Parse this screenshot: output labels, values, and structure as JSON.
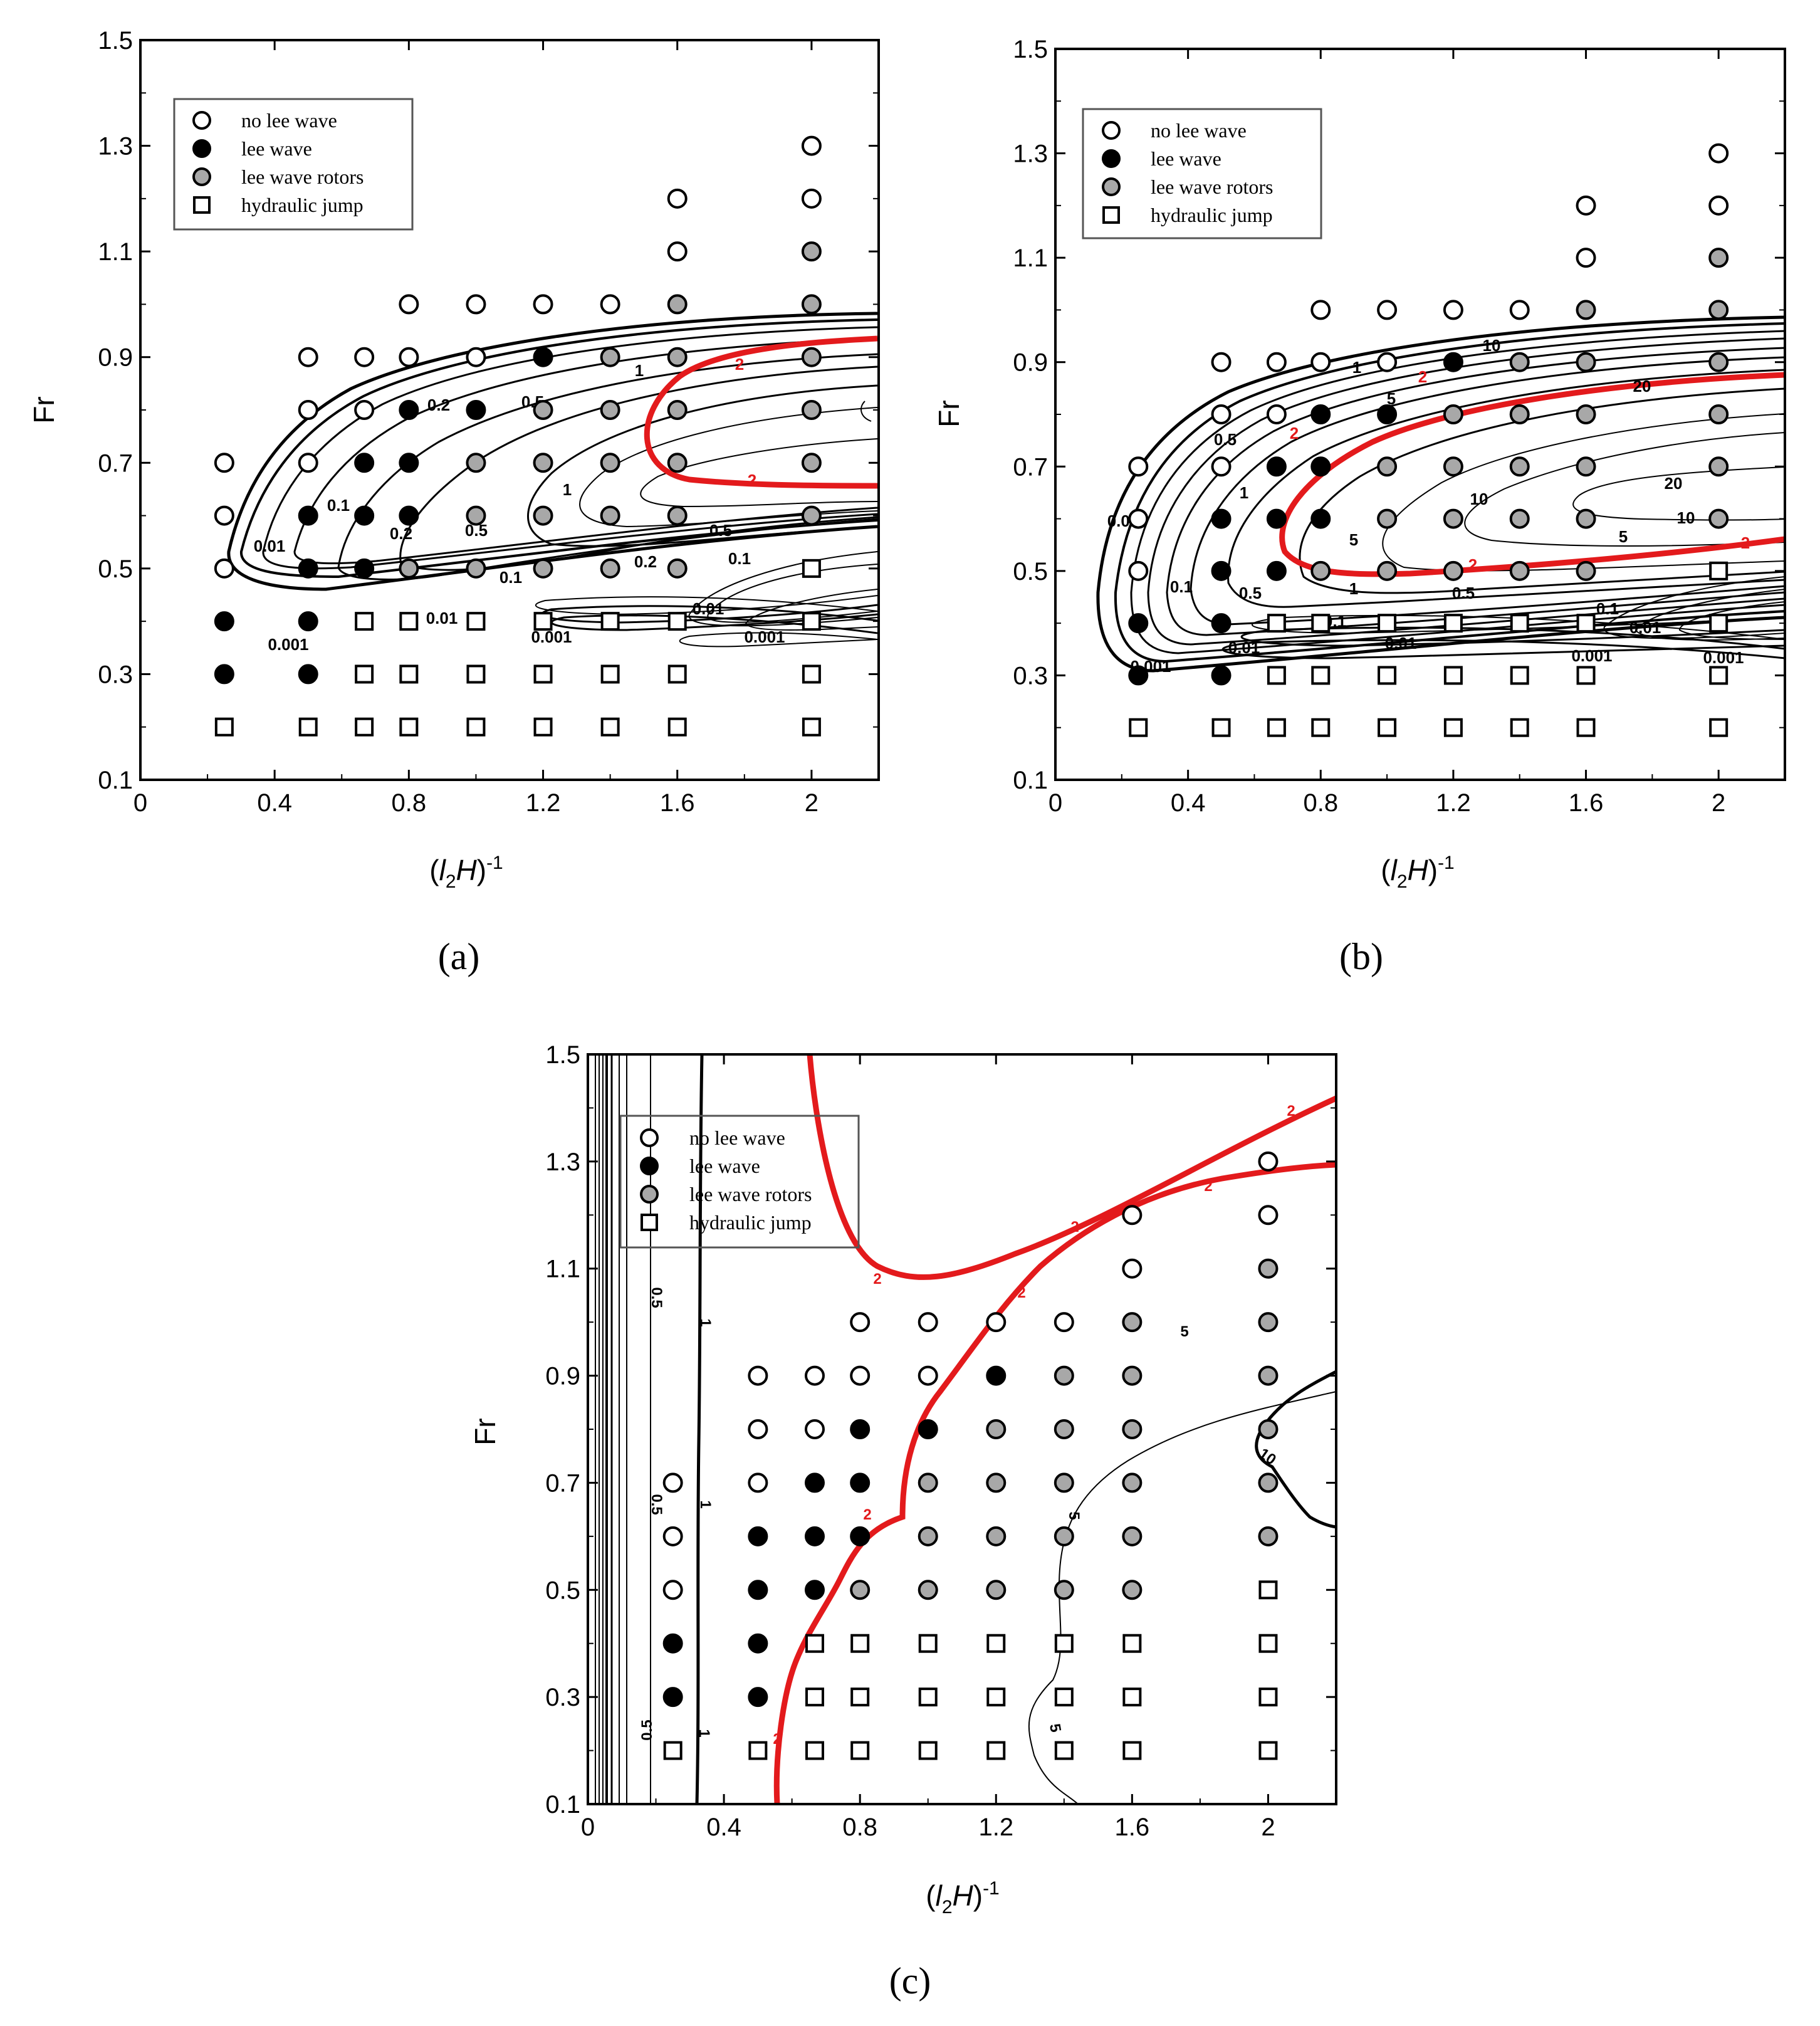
{
  "figure": {
    "panels": [
      "(a)",
      "(b)",
      "(c)"
    ]
  },
  "legend": {
    "no_lee_wave": "no lee wave",
    "lee_wave": "lee wave",
    "lee_wave_rotors": "lee wave rotors",
    "hydraulic_jump": "hydraulic jump"
  },
  "colors": {
    "highlight": "#e31a1c",
    "rotor_fill": "#a8a8a8",
    "ink": "#000000"
  },
  "chart_data": [
    {
      "panel": "(a)",
      "type": "scatter",
      "xlabel": "(l2H)-1",
      "ylabel": "Fr",
      "xlim": [
        0,
        2.2
      ],
      "ylim": [
        0.1,
        1.5
      ],
      "x_ticks": [
        "0",
        "0.4",
        "0.8",
        "1.2",
        "1.6",
        "2"
      ],
      "y_ticks": [
        "0.1",
        "0.3",
        "0.5",
        "0.7",
        "0.9",
        "1.1",
        "1.3",
        "1.5"
      ],
      "contour_labels": [
        "0.001",
        "0.01",
        "0.1",
        "0.2",
        "0.5",
        "1",
        "2"
      ],
      "highlight_contour": "2",
      "points": [
        {
          "x": 0.25,
          "y": 0.7,
          "c": "no"
        },
        {
          "x": 0.25,
          "y": 0.6,
          "c": "no"
        },
        {
          "x": 0.25,
          "y": 0.5,
          "c": "no"
        },
        {
          "x": 0.25,
          "y": 0.4,
          "c": "lee"
        },
        {
          "x": 0.25,
          "y": 0.3,
          "c": "lee"
        },
        {
          "x": 0.25,
          "y": 0.2,
          "c": "jump"
        },
        {
          "x": 0.5,
          "y": 0.9,
          "c": "no"
        },
        {
          "x": 0.5,
          "y": 0.8,
          "c": "no"
        },
        {
          "x": 0.5,
          "y": 0.7,
          "c": "no"
        },
        {
          "x": 0.5,
          "y": 0.6,
          "c": "lee"
        },
        {
          "x": 0.5,
          "y": 0.5,
          "c": "lee"
        },
        {
          "x": 0.5,
          "y": 0.4,
          "c": "lee"
        },
        {
          "x": 0.5,
          "y": 0.3,
          "c": "lee"
        },
        {
          "x": 0.5,
          "y": 0.2,
          "c": "jump"
        },
        {
          "x": 0.667,
          "y": 0.9,
          "c": "no"
        },
        {
          "x": 0.667,
          "y": 0.8,
          "c": "no"
        },
        {
          "x": 0.667,
          "y": 0.7,
          "c": "lee"
        },
        {
          "x": 0.667,
          "y": 0.6,
          "c": "lee"
        },
        {
          "x": 0.667,
          "y": 0.5,
          "c": "lee"
        },
        {
          "x": 0.667,
          "y": 0.4,
          "c": "jump"
        },
        {
          "x": 0.667,
          "y": 0.3,
          "c": "jump"
        },
        {
          "x": 0.667,
          "y": 0.2,
          "c": "jump"
        },
        {
          "x": 0.8,
          "y": 1.0,
          "c": "no"
        },
        {
          "x": 0.8,
          "y": 0.9,
          "c": "no"
        },
        {
          "x": 0.8,
          "y": 0.8,
          "c": "lee"
        },
        {
          "x": 0.8,
          "y": 0.7,
          "c": "lee"
        },
        {
          "x": 0.8,
          "y": 0.6,
          "c": "lee"
        },
        {
          "x": 0.8,
          "y": 0.5,
          "c": "rotor"
        },
        {
          "x": 0.8,
          "y": 0.4,
          "c": "jump"
        },
        {
          "x": 0.8,
          "y": 0.3,
          "c": "jump"
        },
        {
          "x": 0.8,
          "y": 0.2,
          "c": "jump"
        },
        {
          "x": 1.0,
          "y": 1.0,
          "c": "no"
        },
        {
          "x": 1.0,
          "y": 0.9,
          "c": "no"
        },
        {
          "x": 1.0,
          "y": 0.8,
          "c": "lee"
        },
        {
          "x": 1.0,
          "y": 0.7,
          "c": "rotor"
        },
        {
          "x": 1.0,
          "y": 0.6,
          "c": "rotor"
        },
        {
          "x": 1.0,
          "y": 0.5,
          "c": "rotor"
        },
        {
          "x": 1.0,
          "y": 0.4,
          "c": "jump"
        },
        {
          "x": 1.0,
          "y": 0.3,
          "c": "jump"
        },
        {
          "x": 1.0,
          "y": 0.2,
          "c": "jump"
        },
        {
          "x": 1.2,
          "y": 1.0,
          "c": "no"
        },
        {
          "x": 1.2,
          "y": 0.9,
          "c": "lee"
        },
        {
          "x": 1.2,
          "y": 0.8,
          "c": "rotor"
        },
        {
          "x": 1.2,
          "y": 0.7,
          "c": "rotor"
        },
        {
          "x": 1.2,
          "y": 0.6,
          "c": "rotor"
        },
        {
          "x": 1.2,
          "y": 0.5,
          "c": "rotor"
        },
        {
          "x": 1.2,
          "y": 0.4,
          "c": "jump"
        },
        {
          "x": 1.2,
          "y": 0.3,
          "c": "jump"
        },
        {
          "x": 1.2,
          "y": 0.2,
          "c": "jump"
        },
        {
          "x": 1.4,
          "y": 1.0,
          "c": "no"
        },
        {
          "x": 1.4,
          "y": 0.9,
          "c": "rotor"
        },
        {
          "x": 1.4,
          "y": 0.8,
          "c": "rotor"
        },
        {
          "x": 1.4,
          "y": 0.7,
          "c": "rotor"
        },
        {
          "x": 1.4,
          "y": 0.6,
          "c": "rotor"
        },
        {
          "x": 1.4,
          "y": 0.5,
          "c": "rotor"
        },
        {
          "x": 1.4,
          "y": 0.4,
          "c": "jump"
        },
        {
          "x": 1.4,
          "y": 0.3,
          "c": "jump"
        },
        {
          "x": 1.4,
          "y": 0.2,
          "c": "jump"
        },
        {
          "x": 1.6,
          "y": 1.2,
          "c": "no"
        },
        {
          "x": 1.6,
          "y": 1.1,
          "c": "no"
        },
        {
          "x": 1.6,
          "y": 1.0,
          "c": "rotor"
        },
        {
          "x": 1.6,
          "y": 0.9,
          "c": "rotor"
        },
        {
          "x": 1.6,
          "y": 0.8,
          "c": "rotor"
        },
        {
          "x": 1.6,
          "y": 0.7,
          "c": "rotor"
        },
        {
          "x": 1.6,
          "y": 0.6,
          "c": "rotor"
        },
        {
          "x": 1.6,
          "y": 0.5,
          "c": "rotor"
        },
        {
          "x": 1.6,
          "y": 0.4,
          "c": "jump"
        },
        {
          "x": 1.6,
          "y": 0.3,
          "c": "jump"
        },
        {
          "x": 1.6,
          "y": 0.2,
          "c": "jump"
        },
        {
          "x": 2.0,
          "y": 1.3,
          "c": "no"
        },
        {
          "x": 2.0,
          "y": 1.2,
          "c": "no"
        },
        {
          "x": 2.0,
          "y": 1.1,
          "c": "rotor"
        },
        {
          "x": 2.0,
          "y": 1.0,
          "c": "rotor"
        },
        {
          "x": 2.0,
          "y": 0.9,
          "c": "rotor"
        },
        {
          "x": 2.0,
          "y": 0.8,
          "c": "rotor"
        },
        {
          "x": 2.0,
          "y": 0.7,
          "c": "rotor"
        },
        {
          "x": 2.0,
          "y": 0.6,
          "c": "rotor"
        },
        {
          "x": 2.0,
          "y": 0.5,
          "c": "jump"
        },
        {
          "x": 2.0,
          "y": 0.4,
          "c": "jump"
        },
        {
          "x": 2.0,
          "y": 0.3,
          "c": "jump"
        },
        {
          "x": 2.0,
          "y": 0.2,
          "c": "jump"
        }
      ]
    },
    {
      "panel": "(b)",
      "type": "scatter",
      "xlabel": "(l2H)-1",
      "ylabel": "Fr",
      "xlim": [
        0,
        2.2
      ],
      "ylim": [
        0.1,
        1.5
      ],
      "x_ticks": [
        "0",
        "0.4",
        "0.8",
        "1.2",
        "1.6",
        "2"
      ],
      "y_ticks": [
        "0.1",
        "0.3",
        "0.5",
        "0.7",
        "0.9",
        "1.1",
        "1.3",
        "1.5"
      ],
      "contour_labels": [
        "0.001",
        "0.01",
        "0.1",
        "0.5",
        "1",
        "2",
        "5",
        "10",
        "20"
      ],
      "highlight_contour": "2",
      "points_same_as": "(a)"
    },
    {
      "panel": "(c)",
      "type": "scatter",
      "xlabel": "(l2H)-1",
      "ylabel": "Fr",
      "xlim": [
        0,
        2.2
      ],
      "ylim": [
        0.1,
        1.5
      ],
      "x_ticks": [
        "0",
        "0.4",
        "0.8",
        "1.2",
        "1.6",
        "2"
      ],
      "y_ticks": [
        "0.1",
        "0.3",
        "0.5",
        "0.7",
        "0.9",
        "1.1",
        "1.3",
        "1.5"
      ],
      "contour_labels": [
        "0.5",
        "1",
        "2",
        "5",
        "10"
      ],
      "highlight_contour": "2",
      "points_same_as": "(a)"
    }
  ]
}
